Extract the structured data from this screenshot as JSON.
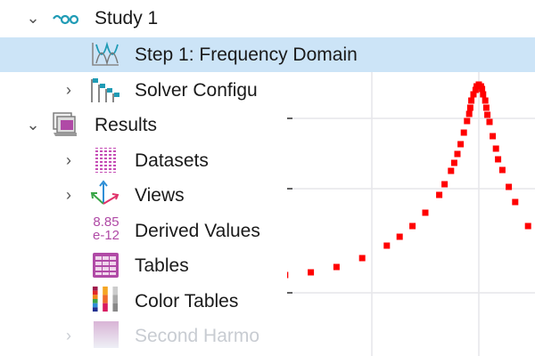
{
  "tree": {
    "items": [
      {
        "label": "Study 1",
        "icon": "study-icon",
        "expanded": true
      },
      {
        "label": "Step 1: Frequency Domain",
        "icon": "frequency-domain-icon",
        "selected": true
      },
      {
        "label": "Solver Configu",
        "icon": "solver-configurations-icon",
        "expanded": false
      },
      {
        "label": "Results",
        "icon": "results-icon",
        "expanded": true
      },
      {
        "label": "Datasets",
        "icon": "datasets-icon",
        "expanded": false
      },
      {
        "label": "Views",
        "icon": "views-icon",
        "expanded": false
      },
      {
        "label": "Derived Values",
        "icon": "derived-values-icon",
        "icon_text_top": "8.85",
        "icon_text_bottom": "e-12"
      },
      {
        "label": "Tables",
        "icon": "tables-icon"
      },
      {
        "label": "Color Tables",
        "icon": "color-tables-icon"
      },
      {
        "label": "Second Harmo",
        "icon": "plot-group-icon",
        "expanded": false,
        "faded": true
      }
    ],
    "colors": {
      "selection": "#cce4f7",
      "accent": "#1f9bb5",
      "magenta": "#b04aa6"
    }
  },
  "chart_data": {
    "type": "scatter",
    "title": "",
    "xlabel": "",
    "ylabel": "",
    "grid": true,
    "marker_color": "#ff0000",
    "series": [
      {
        "x": [
          0.19,
          0.43,
          0.67,
          0.91,
          1.14,
          1.26,
          1.38,
          1.5,
          1.63,
          1.68,
          1.74,
          1.77,
          1.8,
          1.83,
          1.86,
          1.89,
          1.91,
          1.92,
          1.93,
          1.95,
          1.97,
          1.98,
          2.0,
          2.02,
          2.03,
          2.04,
          2.06,
          2.07,
          2.08,
          2.1,
          2.13,
          2.16,
          2.18,
          2.22,
          2.28,
          2.34,
          2.46
        ],
        "y": [
          0.2,
          0.23,
          0.29,
          0.39,
          0.53,
          0.63,
          0.75,
          0.9,
          1.1,
          1.22,
          1.37,
          1.46,
          1.56,
          1.67,
          1.8,
          1.93,
          2.01,
          2.08,
          2.16,
          2.23,
          2.28,
          2.32,
          2.34,
          2.32,
          2.29,
          2.23,
          2.16,
          2.08,
          2.0,
          1.92,
          1.76,
          1.62,
          1.5,
          1.38,
          1.19,
          1.02,
          0.75
        ]
      }
    ]
  }
}
